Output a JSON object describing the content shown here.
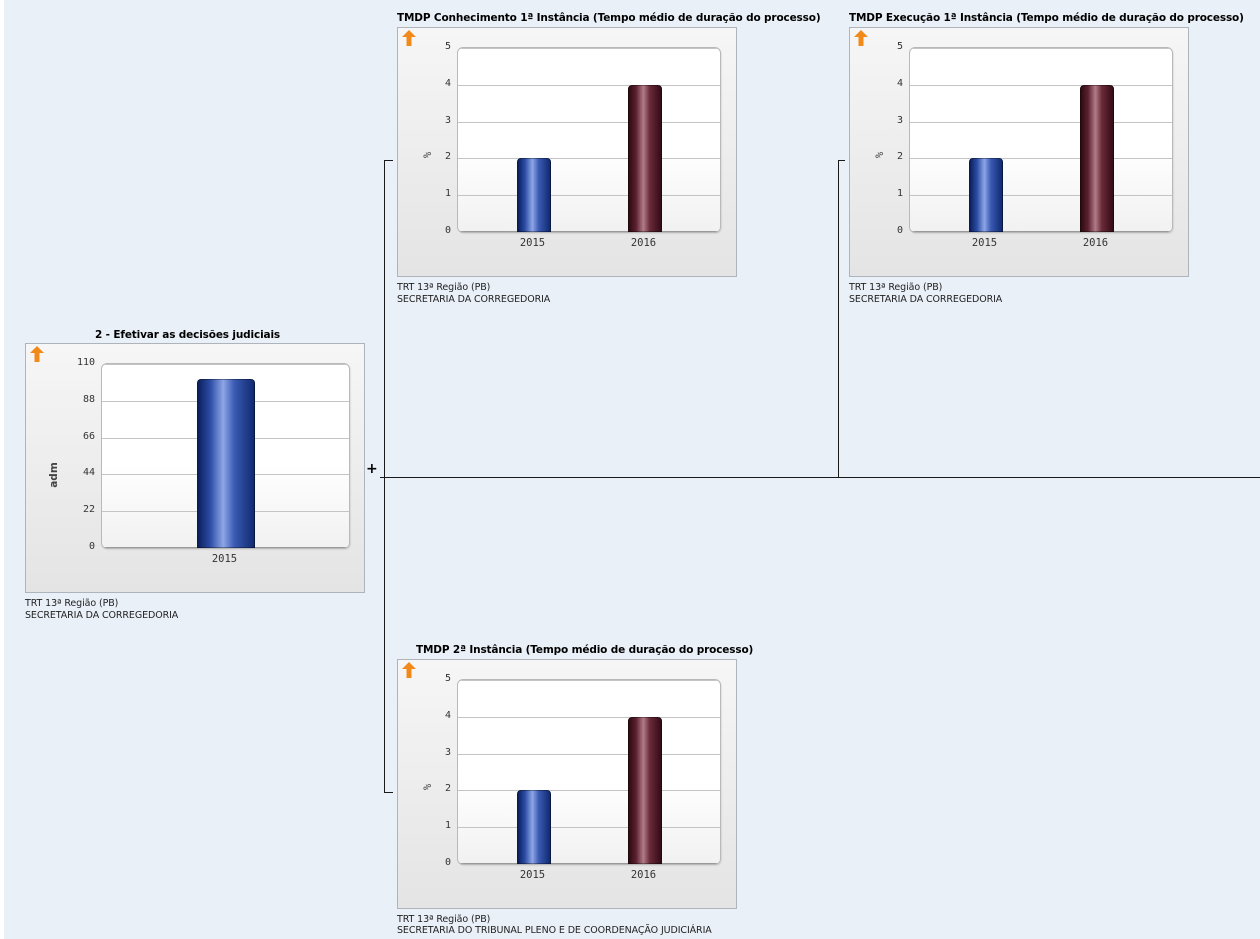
{
  "connector": {
    "expander_label": "+"
  },
  "nodes": {
    "root": {
      "title": "2 - Efetivar as decisões judiciais",
      "trend_icon": "arrow-up-icon",
      "trend_color": "#f28a1a",
      "ylabel": "adm",
      "region": "TRT 13ª Região (PB)",
      "unit": "SECRETARIA DA CORREGEDORIA"
    },
    "conhecimento": {
      "title": "TMDP Conhecimento 1ª Instância (Tempo médio de duração do processo)",
      "trend_icon": "arrow-up-icon",
      "trend_color": "#f28a1a",
      "ylabel": "%",
      "region": "TRT 13ª Região (PB)",
      "unit": "SECRETARIA DA CORREGEDORIA"
    },
    "execucao": {
      "title": "TMDP Execução 1ª Instância (Tempo médio de duração do processo)",
      "trend_icon": "arrow-up-icon",
      "trend_color": "#f28a1a",
      "ylabel": "%",
      "region": "TRT 13ª Região (PB)",
      "unit": "SECRETARIA DA CORREGEDORIA"
    },
    "segunda": {
      "title": "TMDP 2ª Instância (Tempo médio de duração do processo)",
      "trend_icon": "arrow-up-icon",
      "trend_color": "#f28a1a",
      "ylabel": "%",
      "region": "TRT 13ª Região (PB)",
      "unit": "SECRETARIA DO TRIBUNAL PLENO E DE COORDENAÇÃO JUDICIÁRIA"
    }
  },
  "chart_data": [
    {
      "id": "root",
      "type": "bar",
      "categories": [
        "2015"
      ],
      "values": [
        101
      ],
      "ylim": [
        0,
        110
      ],
      "yticks": [
        0,
        22,
        44,
        66,
        88,
        110
      ],
      "ylabel": "adm",
      "colors": [
        "#1f3f95"
      ],
      "grid": true
    },
    {
      "id": "conhecimento",
      "type": "bar",
      "categories": [
        "2015",
        "2016"
      ],
      "values": [
        2,
        4
      ],
      "ylim": [
        0,
        5
      ],
      "yticks": [
        0,
        1,
        2,
        3,
        4,
        5
      ],
      "ylabel": "%",
      "colors": [
        "#1f3f95",
        "#5a1a28"
      ],
      "grid": true
    },
    {
      "id": "execucao",
      "type": "bar",
      "categories": [
        "2015",
        "2016"
      ],
      "values": [
        2,
        4
      ],
      "ylim": [
        0,
        5
      ],
      "yticks": [
        0,
        1,
        2,
        3,
        4,
        5
      ],
      "ylabel": "%",
      "colors": [
        "#1f3f95",
        "#5a1a28"
      ],
      "grid": true
    },
    {
      "id": "segunda",
      "type": "bar",
      "categories": [
        "2015",
        "2016"
      ],
      "values": [
        2,
        4
      ],
      "ylim": [
        0,
        5
      ],
      "yticks": [
        0,
        1,
        2,
        3,
        4,
        5
      ],
      "ylabel": "%",
      "colors": [
        "#1f3f95",
        "#5a1a28"
      ],
      "grid": true
    }
  ]
}
